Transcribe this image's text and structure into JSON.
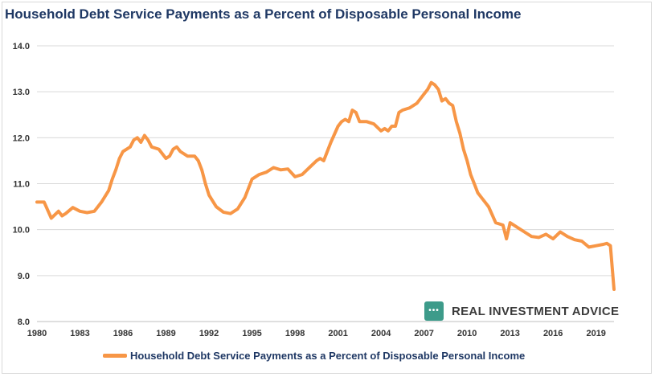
{
  "chart_data": {
    "type": "line",
    "title": "Household Debt Service Payments as a Percent of Disposable Personal Income",
    "xlabel": "",
    "ylabel": "",
    "ylim": [
      8.0,
      14.0
    ],
    "xlim": [
      1980,
      2020.25
    ],
    "yticks": [
      "8.0",
      "9.0",
      "10.0",
      "11.0",
      "12.0",
      "13.0",
      "14.0"
    ],
    "xticks": [
      "1980",
      "1983",
      "1986",
      "1989",
      "1992",
      "1995",
      "1998",
      "2001",
      "2004",
      "2007",
      "2010",
      "2013",
      "2016",
      "2019"
    ],
    "grid": "horizontal",
    "legend_position": "bottom",
    "series": [
      {
        "name": "Household Debt Service Payments as a Percent of Disposable Personal Income",
        "color": "#f79646",
        "points": [
          [
            1980.0,
            10.6
          ],
          [
            1980.5,
            10.6
          ],
          [
            1981.0,
            10.25
          ],
          [
            1981.5,
            10.4
          ],
          [
            1981.75,
            10.3
          ],
          [
            1982.0,
            10.35
          ],
          [
            1982.5,
            10.48
          ],
          [
            1983.0,
            10.4
          ],
          [
            1983.5,
            10.37
          ],
          [
            1984.0,
            10.4
          ],
          [
            1984.5,
            10.6
          ],
          [
            1985.0,
            10.85
          ],
          [
            1985.25,
            11.1
          ],
          [
            1985.5,
            11.3
          ],
          [
            1985.75,
            11.55
          ],
          [
            1986.0,
            11.7
          ],
          [
            1986.5,
            11.8
          ],
          [
            1986.75,
            11.95
          ],
          [
            1987.0,
            12.0
          ],
          [
            1987.25,
            11.9
          ],
          [
            1987.5,
            12.05
          ],
          [
            1987.75,
            11.95
          ],
          [
            1988.0,
            11.8
          ],
          [
            1988.5,
            11.75
          ],
          [
            1989.0,
            11.55
          ],
          [
            1989.25,
            11.6
          ],
          [
            1989.5,
            11.75
          ],
          [
            1989.75,
            11.8
          ],
          [
            1990.0,
            11.7
          ],
          [
            1990.5,
            11.6
          ],
          [
            1991.0,
            11.6
          ],
          [
            1991.25,
            11.5
          ],
          [
            1991.5,
            11.3
          ],
          [
            1991.75,
            11.0
          ],
          [
            1992.0,
            10.75
          ],
          [
            1992.5,
            10.5
          ],
          [
            1993.0,
            10.38
          ],
          [
            1993.5,
            10.35
          ],
          [
            1994.0,
            10.45
          ],
          [
            1994.5,
            10.7
          ],
          [
            1995.0,
            11.1
          ],
          [
            1995.5,
            11.2
          ],
          [
            1996.0,
            11.25
          ],
          [
            1996.5,
            11.35
          ],
          [
            1997.0,
            11.3
          ],
          [
            1997.5,
            11.32
          ],
          [
            1998.0,
            11.15
          ],
          [
            1998.5,
            11.2
          ],
          [
            1999.0,
            11.35
          ],
          [
            1999.5,
            11.5
          ],
          [
            1999.75,
            11.55
          ],
          [
            2000.0,
            11.5
          ],
          [
            2000.5,
            11.9
          ],
          [
            2001.0,
            12.25
          ],
          [
            2001.25,
            12.35
          ],
          [
            2001.5,
            12.4
          ],
          [
            2001.75,
            12.35
          ],
          [
            2002.0,
            12.6
          ],
          [
            2002.25,
            12.55
          ],
          [
            2002.5,
            12.35
          ],
          [
            2003.0,
            12.35
          ],
          [
            2003.5,
            12.3
          ],
          [
            2004.0,
            12.15
          ],
          [
            2004.25,
            12.2
          ],
          [
            2004.5,
            12.15
          ],
          [
            2004.75,
            12.25
          ],
          [
            2005.0,
            12.25
          ],
          [
            2005.25,
            12.55
          ],
          [
            2005.5,
            12.6
          ],
          [
            2006.0,
            12.65
          ],
          [
            2006.5,
            12.75
          ],
          [
            2006.75,
            12.85
          ],
          [
            2007.0,
            12.95
          ],
          [
            2007.25,
            13.05
          ],
          [
            2007.5,
            13.2
          ],
          [
            2007.75,
            13.15
          ],
          [
            2008.0,
            13.05
          ],
          [
            2008.25,
            12.8
          ],
          [
            2008.5,
            12.85
          ],
          [
            2008.75,
            12.75
          ],
          [
            2009.0,
            12.7
          ],
          [
            2009.25,
            12.35
          ],
          [
            2009.5,
            12.1
          ],
          [
            2009.75,
            11.75
          ],
          [
            2010.0,
            11.5
          ],
          [
            2010.25,
            11.2
          ],
          [
            2010.5,
            11.0
          ],
          [
            2010.75,
            10.8
          ],
          [
            2011.0,
            10.7
          ],
          [
            2011.5,
            10.5
          ],
          [
            2012.0,
            10.15
          ],
          [
            2012.5,
            10.1
          ],
          [
            2012.75,
            9.8
          ],
          [
            2013.0,
            10.15
          ],
          [
            2013.5,
            10.05
          ],
          [
            2014.0,
            9.95
          ],
          [
            2014.5,
            9.85
          ],
          [
            2015.0,
            9.83
          ],
          [
            2015.5,
            9.9
          ],
          [
            2016.0,
            9.8
          ],
          [
            2016.5,
            9.95
          ],
          [
            2017.0,
            9.85
          ],
          [
            2017.5,
            9.78
          ],
          [
            2018.0,
            9.75
          ],
          [
            2018.5,
            9.62
          ],
          [
            2019.0,
            9.65
          ],
          [
            2019.5,
            9.68
          ],
          [
            2019.75,
            9.7
          ],
          [
            2020.0,
            9.65
          ],
          [
            2020.25,
            8.7
          ]
        ]
      }
    ]
  },
  "watermark": {
    "text": "REAL INVESTMENT ADVICE",
    "mark_glyph": "•••",
    "color": "#3d9b8a"
  }
}
